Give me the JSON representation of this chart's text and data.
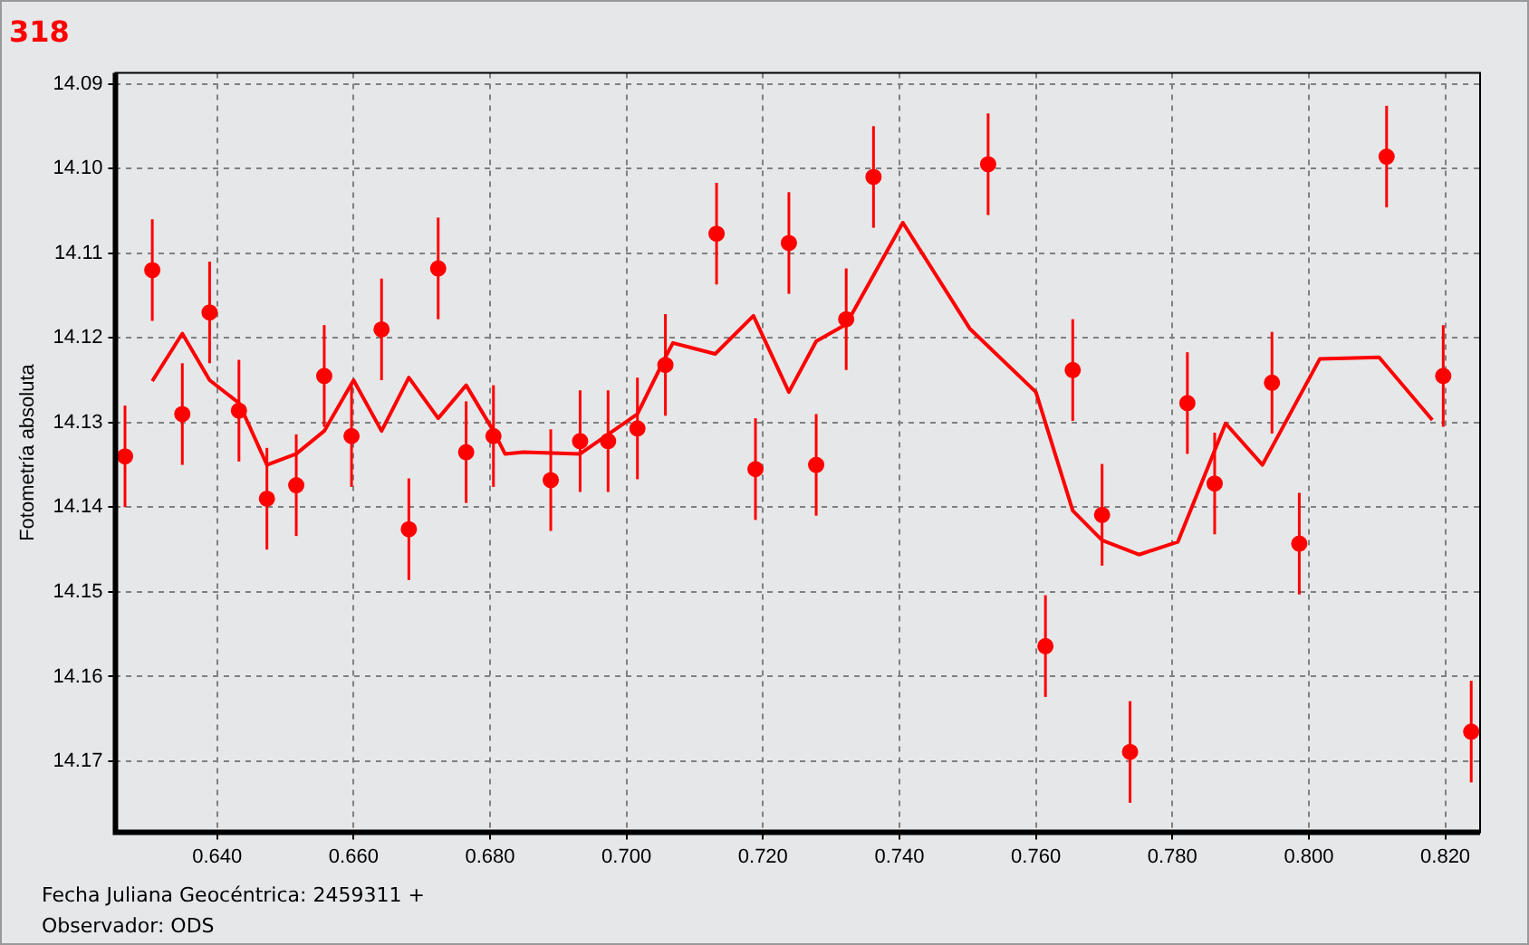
{
  "chart_data": {
    "type": "scatter",
    "title": "318",
    "ylabel": "Fotometría absoluta",
    "annotations": [
      "Fecha Juliana Geocéntrica: 2459311 +",
      "Observador: ODS"
    ],
    "xlim": [
      0.6251,
      0.8251
    ],
    "ylim": [
      14.1784,
      14.0887
    ],
    "xticks": [
      {
        "value": 0.64,
        "label": "0.640"
      },
      {
        "value": 0.66,
        "label": "0.660"
      },
      {
        "value": 0.68,
        "label": "0.680"
      },
      {
        "value": 0.7,
        "label": "0.700"
      },
      {
        "value": 0.72,
        "label": "0.720"
      },
      {
        "value": 0.74,
        "label": "0.740"
      },
      {
        "value": 0.76,
        "label": "0.760"
      },
      {
        "value": 0.78,
        "label": "0.780"
      },
      {
        "value": 0.8,
        "label": "0.800"
      },
      {
        "value": 0.82,
        "label": "0.820"
      }
    ],
    "yticks": [
      14.09,
      {
        "value": 14.1,
        "label": "14.10"
      },
      14.11,
      {
        "value": 14.12,
        "label": "14.12"
      },
      14.13,
      14.14,
      14.15,
      14.16,
      14.17
    ],
    "grid": true,
    "legend": false,
    "series": [
      {
        "color": "#ff0000",
        "marker": "circle",
        "x": [
          0.6265,
          0.6305,
          0.6349,
          0.6389,
          0.6432,
          0.6473,
          0.6516,
          0.6557,
          0.6597,
          0.6641,
          0.6681,
          0.6724,
          0.6765,
          0.6805,
          0.6889,
          0.6932,
          0.6973,
          0.7016,
          0.7057,
          0.7132,
          0.7189,
          0.7238,
          0.7278,
          0.7322,
          0.7362,
          0.753,
          0.7614,
          0.7654,
          0.7697,
          0.7738,
          0.7822,
          0.7862,
          0.7946,
          0.7986,
          0.8114,
          0.8197,
          0.8238
        ],
        "values": [
          14.134,
          14.112,
          14.129,
          14.117,
          14.1286,
          14.139,
          14.1374,
          14.1245,
          14.1316,
          14.119,
          14.1426,
          14.1118,
          14.1335,
          14.1316,
          14.1368,
          14.1322,
          14.1322,
          14.1307,
          14.1232,
          14.1077,
          14.1355,
          14.1088,
          14.135,
          14.1178,
          14.101,
          14.0995,
          14.1564,
          14.1238,
          14.1409,
          14.1689,
          14.1277,
          14.1372,
          14.1253,
          14.1443,
          14.0986,
          14.1245,
          14.1665
        ],
        "errors": [
          0.006,
          0.006,
          0.006,
          0.006,
          0.006,
          0.006,
          0.006,
          0.006,
          0.006,
          0.006,
          0.006,
          0.006,
          0.006,
          0.006,
          0.006,
          0.006,
          0.006,
          0.006,
          0.006,
          0.006,
          0.006,
          0.006,
          0.006,
          0.006,
          0.006,
          0.006,
          0.006,
          0.006,
          0.006,
          0.006,
          0.006,
          0.006,
          0.006,
          0.006,
          0.006,
          0.006,
          0.006
        ]
      },
      {
        "type": "line",
        "color": "#ff0000",
        "marker": "none",
        "x": [
          0.6305,
          0.6349,
          0.6389,
          0.6432,
          0.6473,
          0.6516,
          0.6557,
          0.66,
          0.6641,
          0.6681,
          0.6724,
          0.6765,
          0.6805,
          0.6822,
          0.6849,
          0.6932,
          0.7016,
          0.7057,
          0.7068,
          0.713,
          0.7186,
          0.7238,
          0.7278,
          0.7322,
          0.7405,
          0.7503,
          0.76,
          0.7654,
          0.7697,
          0.7751,
          0.7808,
          0.7878,
          0.7932,
          0.8016,
          0.8103,
          0.8181
        ],
        "values": [
          14.1251,
          14.1195,
          14.125,
          14.1277,
          14.135,
          14.1337,
          14.131,
          14.125,
          14.131,
          14.1247,
          14.1295,
          14.1256,
          14.131,
          14.1337,
          14.1335,
          14.1337,
          14.129,
          14.1223,
          14.1206,
          14.1219,
          14.1174,
          14.1264,
          14.1204,
          14.1184,
          14.1064,
          14.1189,
          14.1264,
          14.1404,
          14.1439,
          14.1456,
          14.1441,
          14.1301,
          14.135,
          14.1225,
          14.1223,
          14.1297
        ]
      }
    ]
  }
}
